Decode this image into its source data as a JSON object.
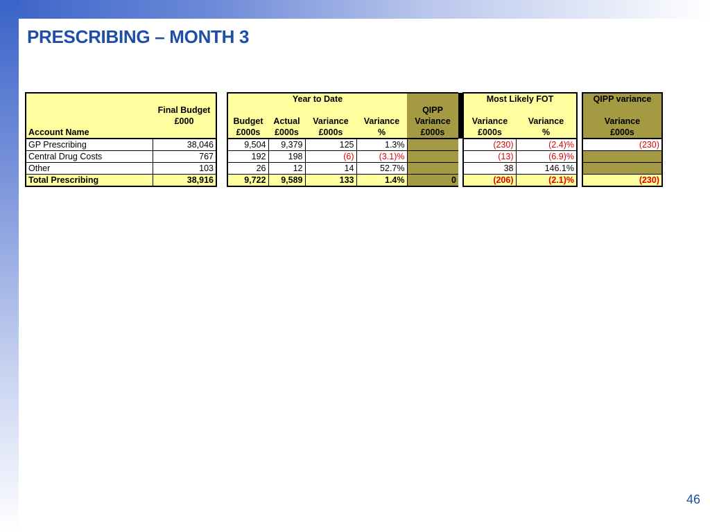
{
  "title": "PRESCRIBING – MONTH 3",
  "page_number": "46",
  "headers": {
    "account_name": "Account Name",
    "final_budget_line1": "Final Budget",
    "final_budget_line2": "£000",
    "group_ytd": "Year to Date",
    "group_fot": "Most Likely FOT",
    "group_qipp": "QIPP variance",
    "ytd_budget": [
      "Budget",
      "£000s"
    ],
    "ytd_actual": [
      "Actual",
      "£000s"
    ],
    "ytd_variance": [
      "Variance",
      "£000s"
    ],
    "ytd_variance_pct": [
      "Variance",
      "%"
    ],
    "ytd_qipp": [
      "QIPP",
      "Variance",
      "£000s"
    ],
    "fot_variance": [
      "Variance",
      "£000s"
    ],
    "fot_variance_pct": [
      "Variance",
      "%"
    ],
    "qipp_variance": [
      "Variance",
      "£000s"
    ]
  },
  "rows": [
    {
      "name": "GP Prescribing",
      "final_budget": "38,046",
      "budget": "9,504",
      "actual": "9,379",
      "variance": "125",
      "variance_pct": "1.3%",
      "qipp": "",
      "fot_variance": "(230)",
      "fot_variance_pct": "(2.4)%",
      "qipp_variance": "(230)"
    },
    {
      "name": "Central Drug Costs",
      "final_budget": "767",
      "budget": "192",
      "actual": "198",
      "variance": "(6)",
      "variance_pct": "(3.1)%",
      "qipp": "",
      "fot_variance": "(13)",
      "fot_variance_pct": "(6.9)%",
      "qipp_variance": ""
    },
    {
      "name": "Other",
      "final_budget": "103",
      "budget": "26",
      "actual": "12",
      "variance": "14",
      "variance_pct": "52.7%",
      "qipp": "",
      "fot_variance": "38",
      "fot_variance_pct": "146.1%",
      "qipp_variance": ""
    },
    {
      "name": "Total Prescribing",
      "final_budget": "38,916",
      "budget": "9,722",
      "actual": "9,589",
      "variance": "133",
      "variance_pct": "1.4%",
      "qipp": "0",
      "fot_variance": "(206)",
      "fot_variance_pct": "(2.1)%",
      "qipp_variance": "(230)"
    }
  ],
  "colors": {
    "title": "#1f4ea8",
    "cell_yellow": "#ffffa0",
    "cell_olive": "#a39a43",
    "negative": "#e00000"
  }
}
